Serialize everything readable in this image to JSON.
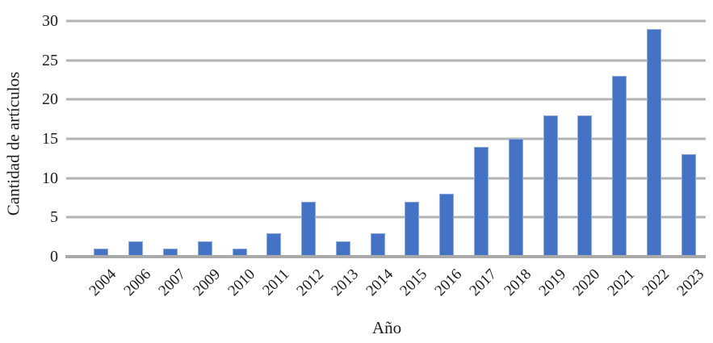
{
  "chart_data": {
    "type": "bar",
    "title": "",
    "xlabel": "Año",
    "ylabel": "Cantidad de artículos",
    "categories": [
      "2004",
      "2006",
      "2007",
      "2009",
      "2010",
      "2011",
      "2012",
      "2013",
      "2014",
      "2015",
      "2016",
      "2017",
      "2018",
      "2019",
      "2020",
      "2021",
      "2022",
      "2023"
    ],
    "values": [
      1,
      2,
      1,
      2,
      1,
      3,
      7,
      2,
      3,
      7,
      8,
      14,
      15,
      18,
      18,
      23,
      29,
      13
    ],
    "ylim": [
      0,
      30
    ],
    "y_tick_step": 5,
    "y_tick_labels": [
      "0",
      "5",
      "10",
      "15",
      "20",
      "25",
      "30"
    ],
    "grid": "horizontal",
    "legend_position": "none",
    "x_tick_rotation_deg": 45,
    "colors": {
      "bar_fill": "#4472C4",
      "bar_border": "#8FAADC",
      "gridline": "#B3B3B3",
      "axis_line": "#A9A9A9",
      "text": "#1C1C1C",
      "background": "#FFFFFF"
    }
  }
}
